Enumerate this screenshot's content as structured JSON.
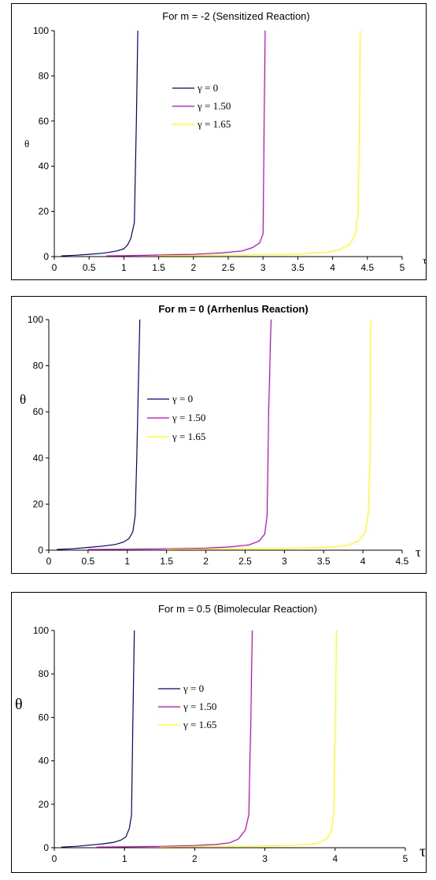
{
  "chart_data": [
    {
      "type": "line",
      "title": "For m = -2 (Sensitized Reaction)",
      "title_bold": false,
      "xlabel": "τ",
      "ylabel": "θ",
      "xlim": [
        0,
        5
      ],
      "ylim": [
        0,
        100
      ],
      "x_ticks": [
        "0",
        "0.5",
        "1",
        "1.5",
        "2",
        "2.5",
        "3",
        "3.5",
        "4",
        "4.5",
        "5"
      ],
      "y_ticks": [
        "0",
        "20",
        "40",
        "60",
        "80",
        "100"
      ],
      "grid": false,
      "legend_position": "center",
      "series": [
        {
          "name": "γ = 0",
          "color": "#000080",
          "x": [
            0.1,
            0.3,
            0.5,
            0.7,
            0.8,
            0.9,
            1.0,
            1.05,
            1.1,
            1.15,
            1.18,
            1.2
          ],
          "y": [
            0.3,
            0.6,
            1.0,
            1.5,
            2,
            2.5,
            3.5,
            5,
            8,
            15,
            60,
            100
          ]
        },
        {
          "name": "γ = 1.50",
          "color": "#cc00cc",
          "x": [
            0.75,
            1.0,
            1.5,
            2.0,
            2.4,
            2.7,
            2.85,
            2.95,
            3.0,
            3.03
          ],
          "y": [
            0.3,
            0.4,
            0.7,
            1.0,
            1.6,
            2.5,
            4,
            6,
            10,
            100
          ]
        },
        {
          "name": "γ = 1.65",
          "color": "#ffff00",
          "x": [
            1.5,
            2.0,
            3.0,
            3.5,
            3.9,
            4.1,
            4.25,
            4.33,
            4.37,
            4.4
          ],
          "y": [
            0.4,
            0.5,
            0.8,
            1.2,
            1.8,
            3,
            5.5,
            10,
            20,
            100
          ]
        }
      ]
    },
    {
      "type": "line",
      "title": "For m = 0 (Arrhenlus Reaction)",
      "title_bold": true,
      "xlabel": "τ",
      "ylabel": "θ",
      "xlim": [
        0,
        4.5
      ],
      "ylim": [
        0,
        100
      ],
      "x_ticks": [
        "0",
        "0.5",
        "1",
        "1.5",
        "2",
        "2.5",
        "3",
        "3.5",
        "4",
        "4.5"
      ],
      "y_ticks": [
        "0",
        "20",
        "40",
        "60",
        "80",
        "100"
      ],
      "grid": false,
      "legend_position": "center-left",
      "series": [
        {
          "name": "γ = 0",
          "color": "#000080",
          "x": [
            0.1,
            0.3,
            0.5,
            0.7,
            0.85,
            0.95,
            1.02,
            1.07,
            1.1,
            1.12,
            1.14,
            1.16
          ],
          "y": [
            0.3,
            0.6,
            1.2,
            1.8,
            2.5,
            3.5,
            5,
            8,
            15,
            40,
            70,
            100
          ]
        },
        {
          "name": "γ = 1.50",
          "color": "#cc00cc",
          "x": [
            0.5,
            1.0,
            1.5,
            2.0,
            2.3,
            2.55,
            2.68,
            2.75,
            2.78,
            2.8,
            2.83
          ],
          "y": [
            0.3,
            0.4,
            0.6,
            0.9,
            1.4,
            2.3,
            4,
            7,
            15,
            60,
            100
          ]
        },
        {
          "name": "γ = 1.65",
          "color": "#ffff00",
          "x": [
            1.5,
            2.0,
            3.0,
            3.5,
            3.8,
            3.95,
            4.03,
            4.07,
            4.09,
            4.1
          ],
          "y": [
            0.3,
            0.5,
            0.8,
            1.2,
            2,
            4,
            8,
            16,
            40,
            100
          ]
        }
      ]
    },
    {
      "type": "line",
      "title": "For m = 0.5 (Bimolecular Reaction)",
      "title_bold": false,
      "xlabel": "τ",
      "ylabel": "θ",
      "xlim": [
        0,
        5
      ],
      "ylim": [
        0,
        100
      ],
      "x_ticks": [
        "0",
        "1",
        "2",
        "3",
        "4",
        "5"
      ],
      "y_ticks": [
        "0",
        "20",
        "40",
        "60",
        "80",
        "100"
      ],
      "grid": false,
      "legend_position": "center-left",
      "series": [
        {
          "name": "γ = 0",
          "color": "#000080",
          "x": [
            0.1,
            0.3,
            0.5,
            0.7,
            0.85,
            0.95,
            1.02,
            1.07,
            1.1,
            1.12,
            1.14
          ],
          "y": [
            0.3,
            0.6,
            1.2,
            1.8,
            2.5,
            3.5,
            5,
            9,
            15,
            60,
            100
          ]
        },
        {
          "name": "γ = 1.50",
          "color": "#cc00cc",
          "x": [
            0.6,
            1.0,
            1.5,
            2.0,
            2.3,
            2.5,
            2.62,
            2.72,
            2.77,
            2.8,
            2.82
          ],
          "y": [
            0.3,
            0.4,
            0.6,
            1.0,
            1.5,
            2.3,
            4,
            8,
            15,
            60,
            100
          ]
        },
        {
          "name": "γ = 1.65",
          "color": "#ffff00",
          "x": [
            1.5,
            2.0,
            3.0,
            3.5,
            3.75,
            3.88,
            3.95,
            3.98,
            4.0,
            4.02
          ],
          "y": [
            0.3,
            0.5,
            0.8,
            1.2,
            2,
            4,
            8,
            15,
            50,
            100
          ]
        }
      ]
    }
  ]
}
